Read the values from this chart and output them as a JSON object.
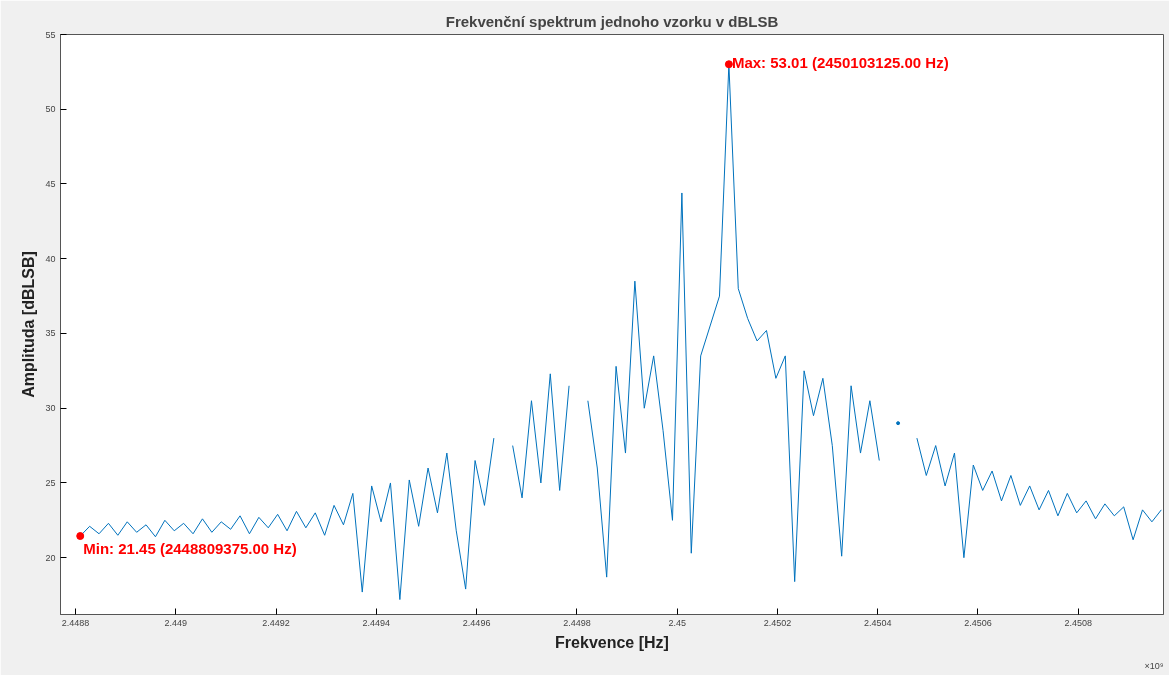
{
  "chart_data": {
    "type": "line",
    "title": "Frekvenční spektrum jednoho vzorku v dBLSB",
    "xlabel": "Frekvence [Hz]",
    "ylabel": "Amplituda [dBLSB]",
    "xlim": [
      2.44877,
      2.45097
    ],
    "ylim": [
      16.2,
      55
    ],
    "xticks": [
      2.4488,
      2.449,
      2.4492,
      2.4494,
      2.4496,
      2.4498,
      2.45,
      2.4502,
      2.4504,
      2.4506,
      2.4508
    ],
    "yticks": [
      20,
      25,
      30,
      35,
      40,
      45,
      50,
      55
    ],
    "grid": false,
    "marker": "none",
    "line_style": "solid",
    "annotations": [
      {
        "text": "Min: 21.45 (2448809375.00 Hz)",
        "x": 2.448809375,
        "y": 21.45
      },
      {
        "text": "Max: 53.01 (2450103125.00 Hz)",
        "x": 2.450103125,
        "y": 53.01
      },
      "×10⁹"
    ],
    "series": [
      {
        "color": "#0072bd",
        "x": [
          2.448809375,
          2.448828125,
          2.448846875,
          2.448865625,
          2.448884375,
          2.448903125,
          2.448921875,
          2.448940625,
          2.448959375,
          2.448978125,
          2.448996875,
          2.449015625,
          2.449034375,
          2.449053125,
          2.449071875,
          2.449090625,
          2.449109375,
          2.449128125,
          2.449146875,
          2.449165625,
          2.449184375,
          2.449203125,
          2.449221875,
          2.449240625,
          2.449259375,
          2.449278125,
          2.449296875,
          2.449315625,
          2.449334375,
          2.449353125,
          2.449371875,
          2.449390625,
          2.449409375,
          2.449428125,
          2.449446875,
          2.449465625,
          2.449484375,
          2.449503125,
          2.449521875,
          2.449540625,
          2.449559375,
          2.449578125,
          2.449596875,
          2.449615625,
          2.449634375,
          2.449653125,
          2.449671875,
          2.449690625,
          2.449709375,
          2.449728125,
          2.449746875,
          2.449765625,
          2.449784375,
          2.449803125,
          2.449821875,
          2.449840625,
          2.449859375,
          2.449878125,
          2.449896875,
          2.449915625,
          2.449934375,
          2.449953125,
          2.449971875,
          2.449990625,
          2.450009375,
          2.450028125,
          2.450046875,
          2.450065625,
          2.450084375,
          2.450103125,
          2.450121875,
          2.450140625,
          2.450159375,
          2.450178125,
          2.450196875,
          2.450215625,
          2.450234375,
          2.450253125,
          2.450271875,
          2.450290625,
          2.450309375,
          2.450328125,
          2.450346875,
          2.450365625,
          2.450384375,
          2.450403125,
          2.450421875,
          2.450440625,
          2.450459375,
          2.450478125,
          2.450496875,
          2.450515625,
          2.450534375,
          2.450553125,
          2.450571875,
          2.450590625,
          2.450609375,
          2.450628125,
          2.450646875,
          2.450665625,
          2.450684375,
          2.450703125,
          2.450721875,
          2.450740625,
          2.450759375,
          2.450778125,
          2.450796875,
          2.450815625,
          2.450834375,
          2.450853125,
          2.450871875,
          2.450890625,
          2.450909375,
          2.450928125,
          2.450946875,
          2.450965625
        ],
        "values": [
          21.45,
          22.1,
          21.6,
          22.3,
          21.5,
          22.4,
          21.7,
          22.2,
          21.4,
          22.5,
          21.8,
          22.3,
          21.6,
          22.6,
          21.7,
          22.4,
          21.9,
          22.8,
          21.6,
          22.7,
          22.0,
          22.9,
          21.8,
          23.1,
          22.0,
          23.0,
          21.5,
          23.5,
          22.2,
          24.3,
          17.7,
          24.8,
          22.4,
          25.0,
          17.2,
          25.2,
          22.1,
          26.0,
          23.0,
          27.0,
          21.8,
          17.9,
          26.5,
          23.5,
          28.0,
          null,
          27.5,
          24.0,
          30.5,
          25.0,
          32.3,
          24.5,
          31.5,
          null,
          30.5,
          26.0,
          18.7,
          32.8,
          27.0,
          38.5,
          30.0,
          33.5,
          28.5,
          22.5,
          44.4,
          20.3,
          33.5,
          35.5,
          37.5,
          53.01,
          38.0,
          36.0,
          34.5,
          35.2,
          32.0,
          33.5,
          18.4,
          32.5,
          29.5,
          32.0,
          27.5,
          20.1,
          31.5,
          27.0,
          30.5,
          26.5,
          null,
          29.0,
          null,
          28.0,
          25.5,
          27.5,
          24.8,
          27.0,
          20.0,
          26.2,
          24.5,
          25.8,
          23.8,
          25.5,
          23.5,
          24.8,
          23.2,
          24.5,
          22.8,
          24.3,
          23.0,
          23.8,
          22.6,
          23.6,
          22.8,
          23.4,
          21.2,
          23.2,
          22.4,
          23.2
        ]
      }
    ]
  }
}
